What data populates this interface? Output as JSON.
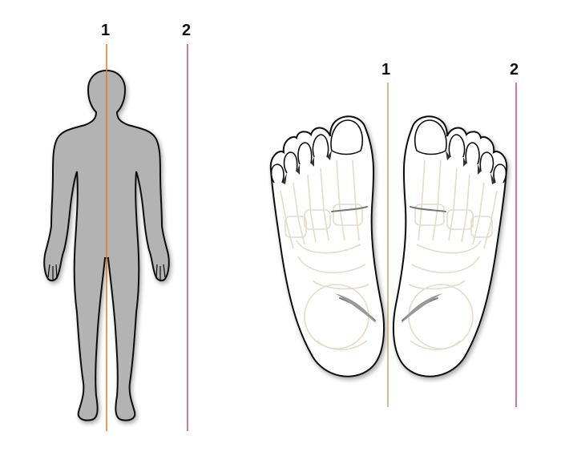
{
  "body_figure": {
    "line_1_label": "1",
    "line_2_label": "2"
  },
  "feet_figure": {
    "line_1_label": "1",
    "line_2_label": "2"
  },
  "colors": {
    "body_fill": "#b3b3b3",
    "outline": "#111111",
    "line_1": "#e07b22",
    "line_2": "#c2185b",
    "feet_line_1": "#c9a46a",
    "bones": "#e3dccb",
    "foot_fill": "#ffffff"
  }
}
